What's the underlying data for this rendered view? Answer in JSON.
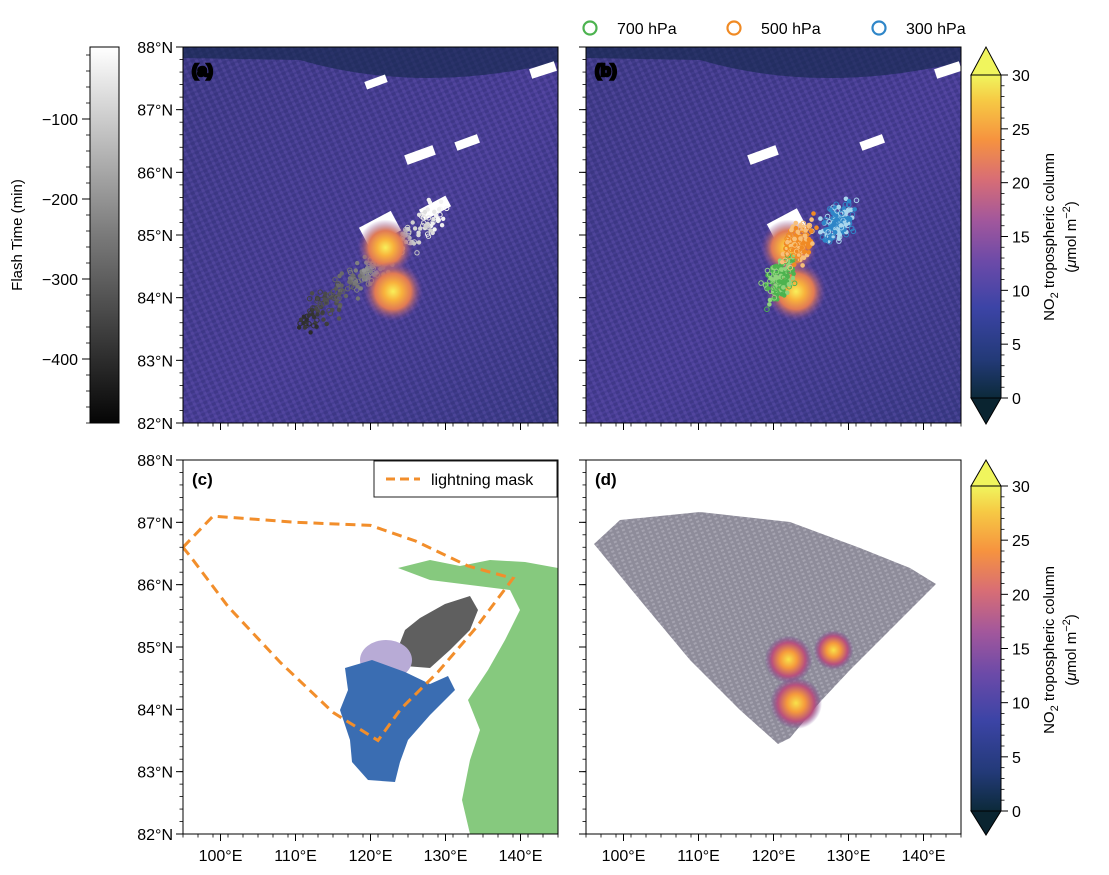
{
  "legend": {
    "items": [
      {
        "label": "700 hPa",
        "color": "#4cb34f"
      },
      {
        "label": "500 hPa",
        "color": "#f08a24"
      },
      {
        "label": "300 hPa",
        "color": "#2f86c8"
      }
    ]
  },
  "flash_colorbar": {
    "label": "Flash Time (min)",
    "ticks": [
      -100,
      -200,
      -300,
      -400
    ],
    "range": [
      -480,
      -10
    ]
  },
  "no2_colorbar": {
    "label_main": "NO",
    "label_sub": "2",
    "label_rest": " tropospheric column",
    "unit_open": "(",
    "unit_mu": "μ",
    "unit_text": "mol m",
    "unit_sup": "−2",
    "unit_close": ")",
    "ticks": [
      0,
      5,
      10,
      15,
      20,
      25,
      30
    ],
    "range": [
      0,
      30
    ]
  },
  "panels": [
    {
      "id": "a",
      "label": "(a)"
    },
    {
      "id": "b",
      "label": "(b)"
    },
    {
      "id": "c",
      "label": "(c)",
      "legend_label": "lightning mask"
    },
    {
      "id": "d",
      "label": "(d)"
    }
  ],
  "axes": {
    "lat_ticks": [
      {
        "value": 82,
        "label": "82°N"
      },
      {
        "value": 83,
        "label": "83°N"
      },
      {
        "value": 84,
        "label": "84°N"
      },
      {
        "value": 85,
        "label": "85°N"
      },
      {
        "value": 86,
        "label": "86°N"
      },
      {
        "value": 87,
        "label": "87°N"
      },
      {
        "value": 88,
        "label": "88°N"
      }
    ],
    "lon_ticks": [
      {
        "value": 100,
        "label": "100°E"
      },
      {
        "value": 110,
        "label": "110°E"
      },
      {
        "value": 120,
        "label": "120°E"
      },
      {
        "value": 130,
        "label": "130°E"
      },
      {
        "value": 140,
        "label": "140°E"
      }
    ],
    "lon_range": [
      95,
      145
    ],
    "lat_range": [
      82,
      88
    ]
  },
  "chart_data": {
    "type": "heatmap",
    "panels": [
      "(a)",
      "(b)",
      "(c)",
      "(d)"
    ],
    "lon_range": [
      95,
      145
    ],
    "lat_range": [
      82,
      88
    ],
    "colorbar_no2": {
      "range": [
        0,
        30
      ],
      "ticks": [
        0,
        5,
        10,
        15,
        20,
        25,
        30
      ]
    },
    "colorbar_flash": {
      "range": [
        -480,
        -10
      ],
      "ticks": [
        -100,
        -200,
        -300,
        -400
      ]
    },
    "no2_hotspots": [
      {
        "lon": 122,
        "lat": 84.8,
        "value": 28
      },
      {
        "lon": 123,
        "lat": 84.1,
        "value": 29
      },
      {
        "lon": 128,
        "lat": 84.95,
        "value": 24
      }
    ],
    "lightning_mask": [
      [
        95,
        86.6
      ],
      [
        99,
        87.1
      ],
      [
        110,
        87.0
      ],
      [
        120,
        86.95
      ],
      [
        126,
        86.7
      ],
      [
        133,
        86.3
      ],
      [
        139,
        86.1
      ],
      [
        134,
        85.3
      ],
      [
        129,
        84.6
      ],
      [
        124,
        84.0
      ],
      [
        121,
        83.5
      ],
      [
        115,
        83.95
      ],
      [
        108,
        84.75
      ],
      [
        101,
        85.65
      ],
      [
        96,
        86.45
      ]
    ],
    "legend_levels": [
      "700 hPa",
      "500 hPa",
      "300 hPa"
    ]
  }
}
